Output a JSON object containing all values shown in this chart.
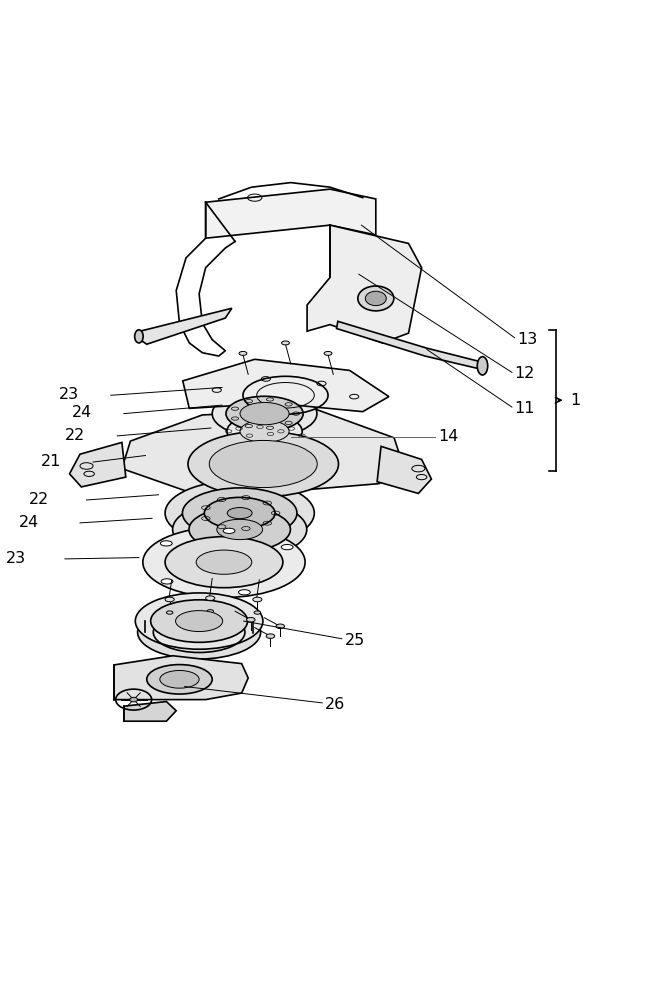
{
  "background_color": "#ffffff",
  "line_color": "#000000",
  "green_color": "#00aa00",
  "line_width": 1.2,
  "thin_line": 0.7,
  "fig_width": 6.6,
  "fig_height": 10.0,
  "label_fontsize": 11.5
}
